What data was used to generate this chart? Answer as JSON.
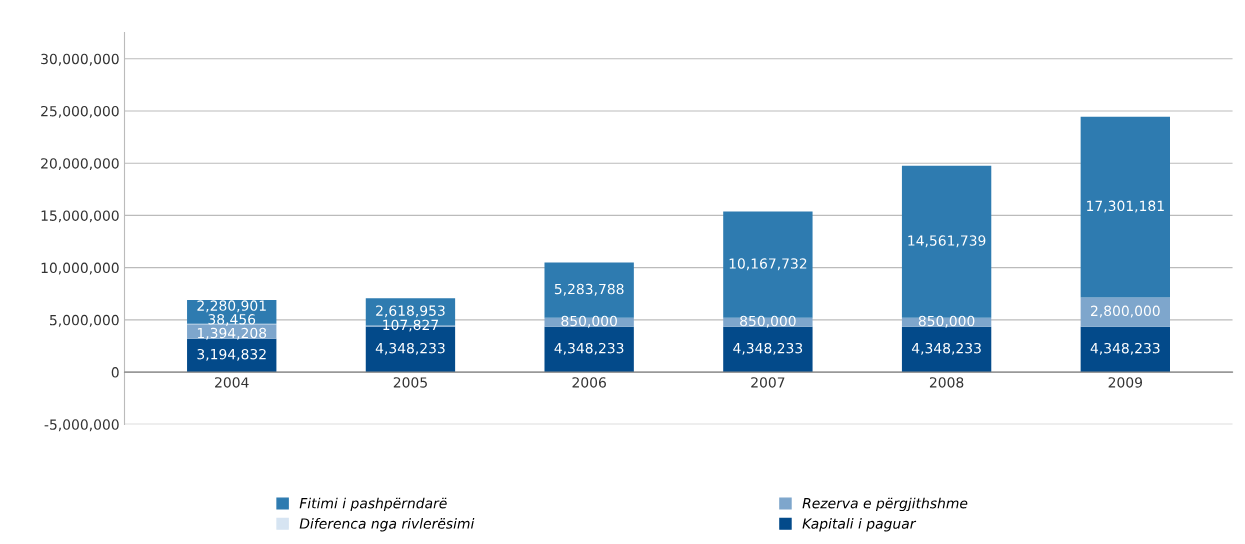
{
  "chart_data": {
    "type": "bar",
    "stacked": true,
    "grid": "y",
    "legend": "bottom",
    "categories": [
      "2004",
      "2005",
      "2006",
      "2007",
      "2008",
      "2009"
    ],
    "series": [
      {
        "name": "Kapitali i paguar",
        "color": "#034a8a",
        "values": [
          3194832,
          4348233,
          4348233,
          4348233,
          4348233,
          4348233
        ],
        "value_labels": [
          "3,194,832",
          "4,348,233",
          "4,348,233",
          "4,348,233",
          "4,348,233",
          "4,348,233"
        ]
      },
      {
        "name": "Rezerva e përgjithshme",
        "color": "#7ea6cc",
        "values": [
          1394208,
          107827,
          850000,
          850000,
          850000,
          2800000
        ],
        "value_labels": [
          "1,394,208",
          "107,827",
          "850,000",
          "850,000",
          "850,000",
          "2,800,000"
        ]
      },
      {
        "name": "Diferenca nga rivlerësimi",
        "color": "#d6e4f2",
        "values": [
          38456,
          null,
          null,
          null,
          null,
          null
        ],
        "value_labels": [
          "38,456",
          null,
          null,
          null,
          null,
          null
        ]
      },
      {
        "name": "Fitimi i pashpërndarë",
        "color": "#2e7bb0",
        "values": [
          2280901,
          2618953,
          5283788,
          10167732,
          14561739,
          17301181
        ],
        "value_labels": [
          "2,280,901",
          "2,618,953",
          "5,283,788",
          "10,167,732",
          "14,561,739",
          "17,301,181"
        ]
      }
    ],
    "ylim": [
      -5000000,
      32500000
    ],
    "yticks": [
      {
        "value": -5000000,
        "label": "-5,000,000"
      },
      0,
      {
        "value": 5000000,
        "label": "5,000,000"
      },
      {
        "value": 10000000,
        "label": "10,000,000"
      },
      {
        "value": 15000000,
        "label": "15,000,000"
      },
      {
        "value": 20000000,
        "label": "20,000,000"
      },
      {
        "value": 25000000,
        "label": "25,000,000"
      },
      {
        "value": 30000000,
        "label": "30,000,000"
      }
    ]
  }
}
